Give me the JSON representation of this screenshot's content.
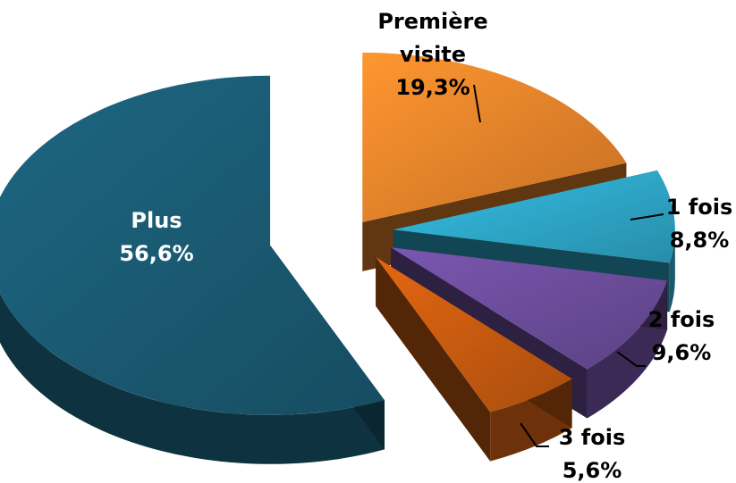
{
  "chart_data": {
    "type": "pie",
    "style": "3d-exploded",
    "slices": [
      {
        "label": "Première visite",
        "lines": [
          "Première",
          "visite"
        ],
        "value_text": "19,3%",
        "value": 19.3,
        "color": "#E8822A"
      },
      {
        "label": "1 fois",
        "lines": [
          "1 fois"
        ],
        "value_text": "8,8%",
        "value": 8.8,
        "color": "#2EA6C7"
      },
      {
        "label": "2 fois",
        "lines": [
          "2 fois"
        ],
        "value_text": "9,6%",
        "value": 9.6,
        "color": "#6B4C9A"
      },
      {
        "label": "3 fois",
        "lines": [
          "3 fois"
        ],
        "value_text": "5,6%",
        "value": 5.6,
        "color": "#C65A10"
      },
      {
        "label": "Plus",
        "lines": [
          "Plus"
        ],
        "value_text": "56,6%",
        "value": 56.6,
        "color": "#1A5A72"
      }
    ]
  }
}
